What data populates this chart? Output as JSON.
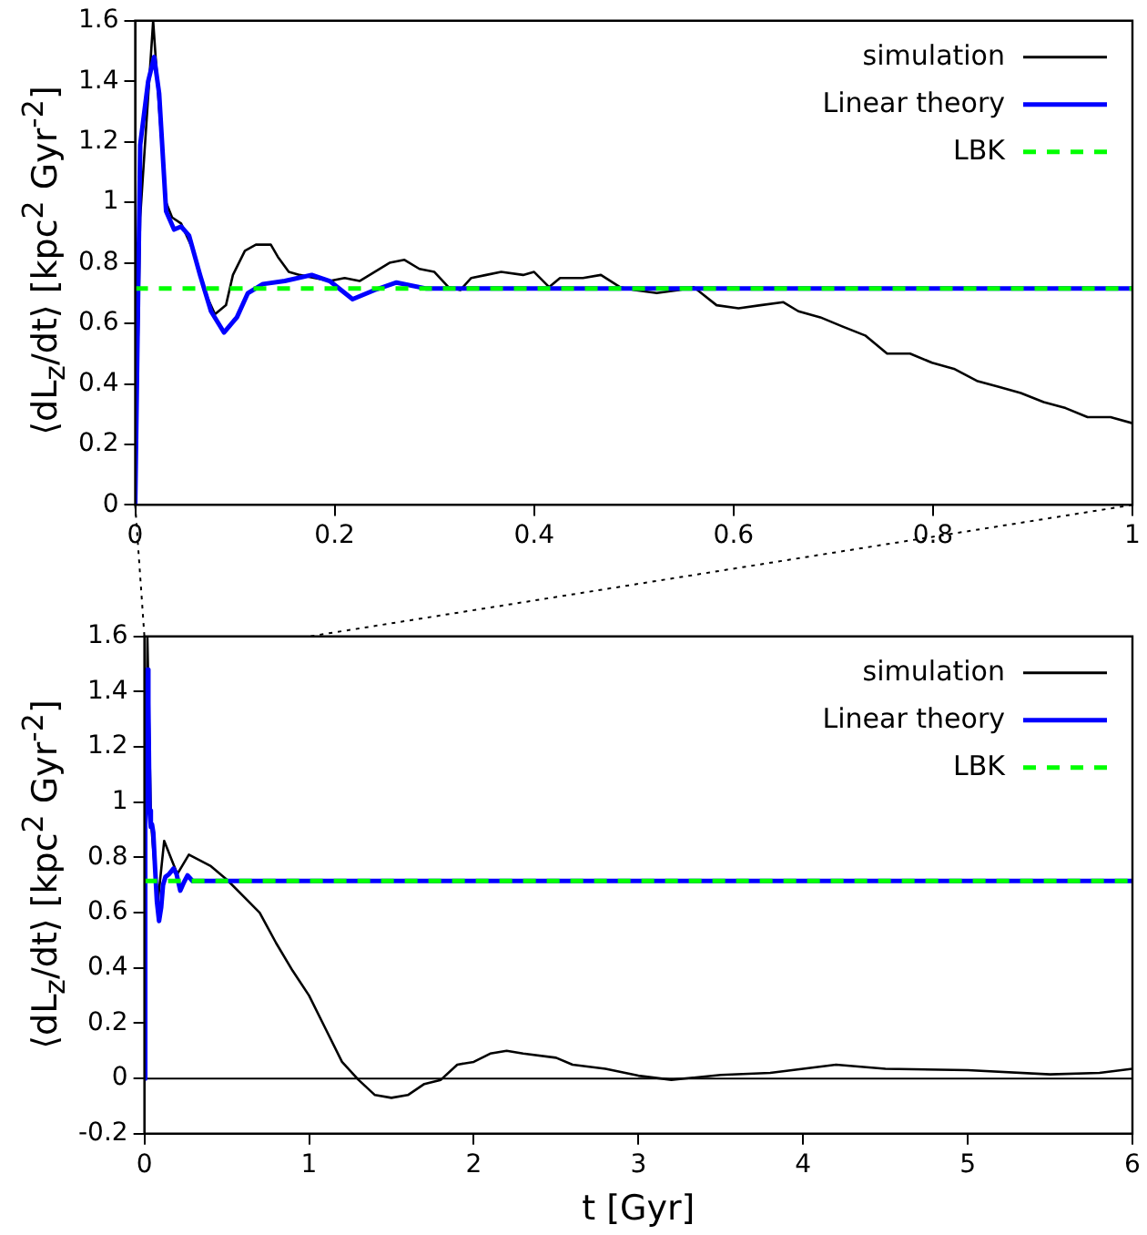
{
  "chart_data": [
    {
      "type": "line",
      "ylabel": "⟨dL$_{z}$/dt⟩ [kpc$^{2}$ Gyr$^{-2}$]",
      "xlim": [
        0,
        1
      ],
      "ylim": [
        0,
        1.6
      ],
      "xticks": [
        0,
        0.2,
        0.4,
        0.6,
        0.8,
        1
      ],
      "yticks": [
        0,
        0.2,
        0.4,
        0.6,
        0.8,
        1,
        1.2,
        1.4,
        1.6
      ],
      "grid": false,
      "legend": "top right",
      "marker": "none",
      "series": [
        {
          "name": "simulation",
          "color": "#000000",
          "x": [
            0,
            0.005,
            0.018,
            0.024,
            0.031,
            0.037,
            0.046,
            0.057,
            0.069,
            0.08,
            0.091,
            0.098,
            0.11,
            0.121,
            0.136,
            0.143,
            0.154,
            0.165,
            0.18,
            0.195,
            0.21,
            0.225,
            0.24,
            0.255,
            0.27,
            0.285,
            0.3,
            0.314,
            0.326,
            0.337,
            0.352,
            0.367,
            0.389,
            0.4,
            0.415,
            0.426,
            0.449,
            0.467,
            0.486,
            0.501,
            0.523,
            0.545,
            0.56,
            0.583,
            0.605,
            0.627,
            0.65,
            0.665,
            0.687,
            0.709,
            0.732,
            0.754,
            0.777,
            0.799,
            0.821,
            0.844,
            0.866,
            0.888,
            0.911,
            0.933,
            0.955,
            0.978,
            1
          ],
          "values": [
            0,
            0.95,
            1.6,
            1.31,
            1,
            0.95,
            0.93,
            0.85,
            0.71,
            0.63,
            0.66,
            0.76,
            0.84,
            0.86,
            0.86,
            0.82,
            0.77,
            0.76,
            0.75,
            0.74,
            0.75,
            0.74,
            0.77,
            0.8,
            0.81,
            0.78,
            0.77,
            0.72,
            0.71,
            0.75,
            0.76,
            0.77,
            0.76,
            0.77,
            0.72,
            0.75,
            0.75,
            0.76,
            0.72,
            0.71,
            0.7,
            0.71,
            0.72,
            0.66,
            0.65,
            0.66,
            0.67,
            0.64,
            0.62,
            0.59,
            0.56,
            0.5,
            0.5,
            0.47,
            0.45,
            0.41,
            0.39,
            0.37,
            0.34,
            0.32,
            0.29,
            0.29,
            0.27
          ]
        },
        {
          "name": "Linear theory",
          "color": "#0000ff",
          "x": [
            0,
            0.005,
            0.013,
            0.019,
            0.024,
            0.031,
            0.039,
            0.046,
            0.054,
            0.065,
            0.076,
            0.089,
            0.102,
            0.113,
            0.128,
            0.15,
            0.177,
            0.195,
            0.218,
            0.24,
            0.262,
            0.292,
            1
          ],
          "values": [
            0,
            1.19,
            1.4,
            1.48,
            1.36,
            0.97,
            0.91,
            0.92,
            0.89,
            0.76,
            0.64,
            0.57,
            0.62,
            0.7,
            0.73,
            0.74,
            0.76,
            0.74,
            0.68,
            0.71,
            0.735,
            0.715,
            0.715
          ]
        },
        {
          "name": "LBK",
          "color": "#00ff00",
          "line_style": "dashed",
          "x": [
            0,
            1
          ],
          "values": [
            0.715,
            0.715
          ]
        }
      ]
    },
    {
      "type": "line",
      "xlabel": "t [Gyr]",
      "ylabel": "⟨dL$_{z}$/dt⟩ [kpc$^{2}$ Gyr$^{-2}$]",
      "xlim": [
        0,
        6
      ],
      "ylim": [
        -0.2,
        1.6
      ],
      "xticks": [
        0,
        1,
        2,
        3,
        4,
        5,
        6
      ],
      "yticks": [
        -0.2,
        0,
        0.2,
        0.4,
        0.6,
        0.8,
        1,
        1.2,
        1.4,
        1.6
      ],
      "grid": false,
      "legend": "top right",
      "marker": "none",
      "ref_lines": [
        {
          "axis": "y",
          "value": 0,
          "color": "#000000"
        }
      ],
      "series": [
        {
          "name": "simulation",
          "color": "#000000",
          "x": [
            0,
            0.018,
            0.04,
            0.08,
            0.12,
            0.2,
            0.27,
            0.4,
            0.5,
            0.6,
            0.7,
            0.8,
            0.9,
            1,
            1.1,
            1.2,
            1.3,
            1.4,
            1.5,
            1.6,
            1.7,
            1.8,
            1.9,
            2,
            2.1,
            2.2,
            2.3,
            2.5,
            2.6,
            2.8,
            3,
            3.2,
            3.5,
            3.8,
            4,
            4.2,
            4.5,
            5,
            5.5,
            5.8,
            6
          ],
          "values": [
            0,
            1.6,
            0.93,
            0.63,
            0.86,
            0.74,
            0.81,
            0.77,
            0.72,
            0.66,
            0.6,
            0.49,
            0.39,
            0.3,
            0.18,
            0.06,
            -0.005,
            -0.06,
            -0.07,
            -0.06,
            -0.02,
            -0.005,
            0.05,
            0.06,
            0.09,
            0.1,
            0.09,
            0.075,
            0.05,
            0.035,
            0.01,
            -0.005,
            0.013,
            0.02,
            0.035,
            0.05,
            0.035,
            0.03,
            0.015,
            0.02,
            0.035
          ]
        },
        {
          "name": "Linear theory",
          "color": "#0000ff",
          "x": [
            0,
            0.005,
            0.013,
            0.019,
            0.024,
            0.031,
            0.039,
            0.046,
            0.054,
            0.065,
            0.076,
            0.089,
            0.102,
            0.113,
            0.128,
            0.15,
            0.177,
            0.195,
            0.218,
            0.24,
            0.262,
            0.292,
            6
          ],
          "values": [
            0,
            1.19,
            1.4,
            1.48,
            1.36,
            0.97,
            0.91,
            0.92,
            0.89,
            0.76,
            0.64,
            0.57,
            0.62,
            0.7,
            0.73,
            0.74,
            0.76,
            0.74,
            0.68,
            0.71,
            0.735,
            0.715,
            0.715
          ]
        },
        {
          "name": "LBK",
          "color": "#00ff00",
          "line_style": "dashed",
          "x": [
            0,
            6
          ],
          "values": [
            0.715,
            0.715
          ]
        }
      ]
    }
  ]
}
